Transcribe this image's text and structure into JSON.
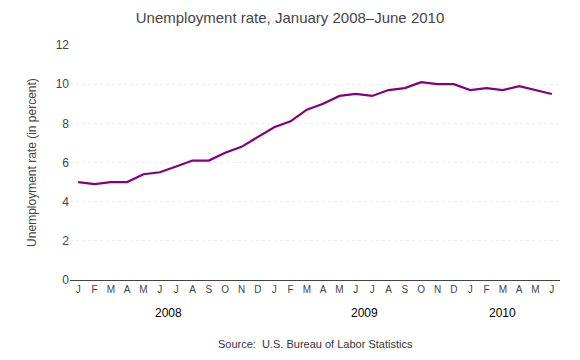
{
  "chart_data": {
    "type": "line",
    "title": "Unemployment rate, January 2008–June 2010",
    "ylabel": "Unemployment rate (in percent)",
    "categories": [
      "J",
      "F",
      "M",
      "A",
      "M",
      "J",
      "J",
      "A",
      "S",
      "O",
      "N",
      "D",
      "J",
      "F",
      "M",
      "A",
      "M",
      "J",
      "J",
      "A",
      "S",
      "O",
      "N",
      "D",
      "J",
      "F",
      "M",
      "A",
      "M",
      "J"
    ],
    "values": [
      5.0,
      4.9,
      5.0,
      5.0,
      5.4,
      5.5,
      5.8,
      6.1,
      6.1,
      6.5,
      6.8,
      7.3,
      7.8,
      8.1,
      8.7,
      9.0,
      9.4,
      9.5,
      9.4,
      9.7,
      9.8,
      10.1,
      10.0,
      10.0,
      9.7,
      9.8,
      9.7,
      9.9,
      9.7,
      9.5
    ],
    "color": "#800080",
    "ylim": [
      0,
      12
    ],
    "yticks": [
      0,
      2,
      4,
      6,
      8,
      10,
      12
    ],
    "grid": true,
    "annotations": [
      {
        "text": "2008",
        "x": 5.5
      },
      {
        "text": "2009",
        "x": 17.5
      },
      {
        "text": "2010",
        "x": 26.0
      },
      {
        "text": "Source:  U.S. Bureau of Labor Statistics"
      }
    ]
  }
}
